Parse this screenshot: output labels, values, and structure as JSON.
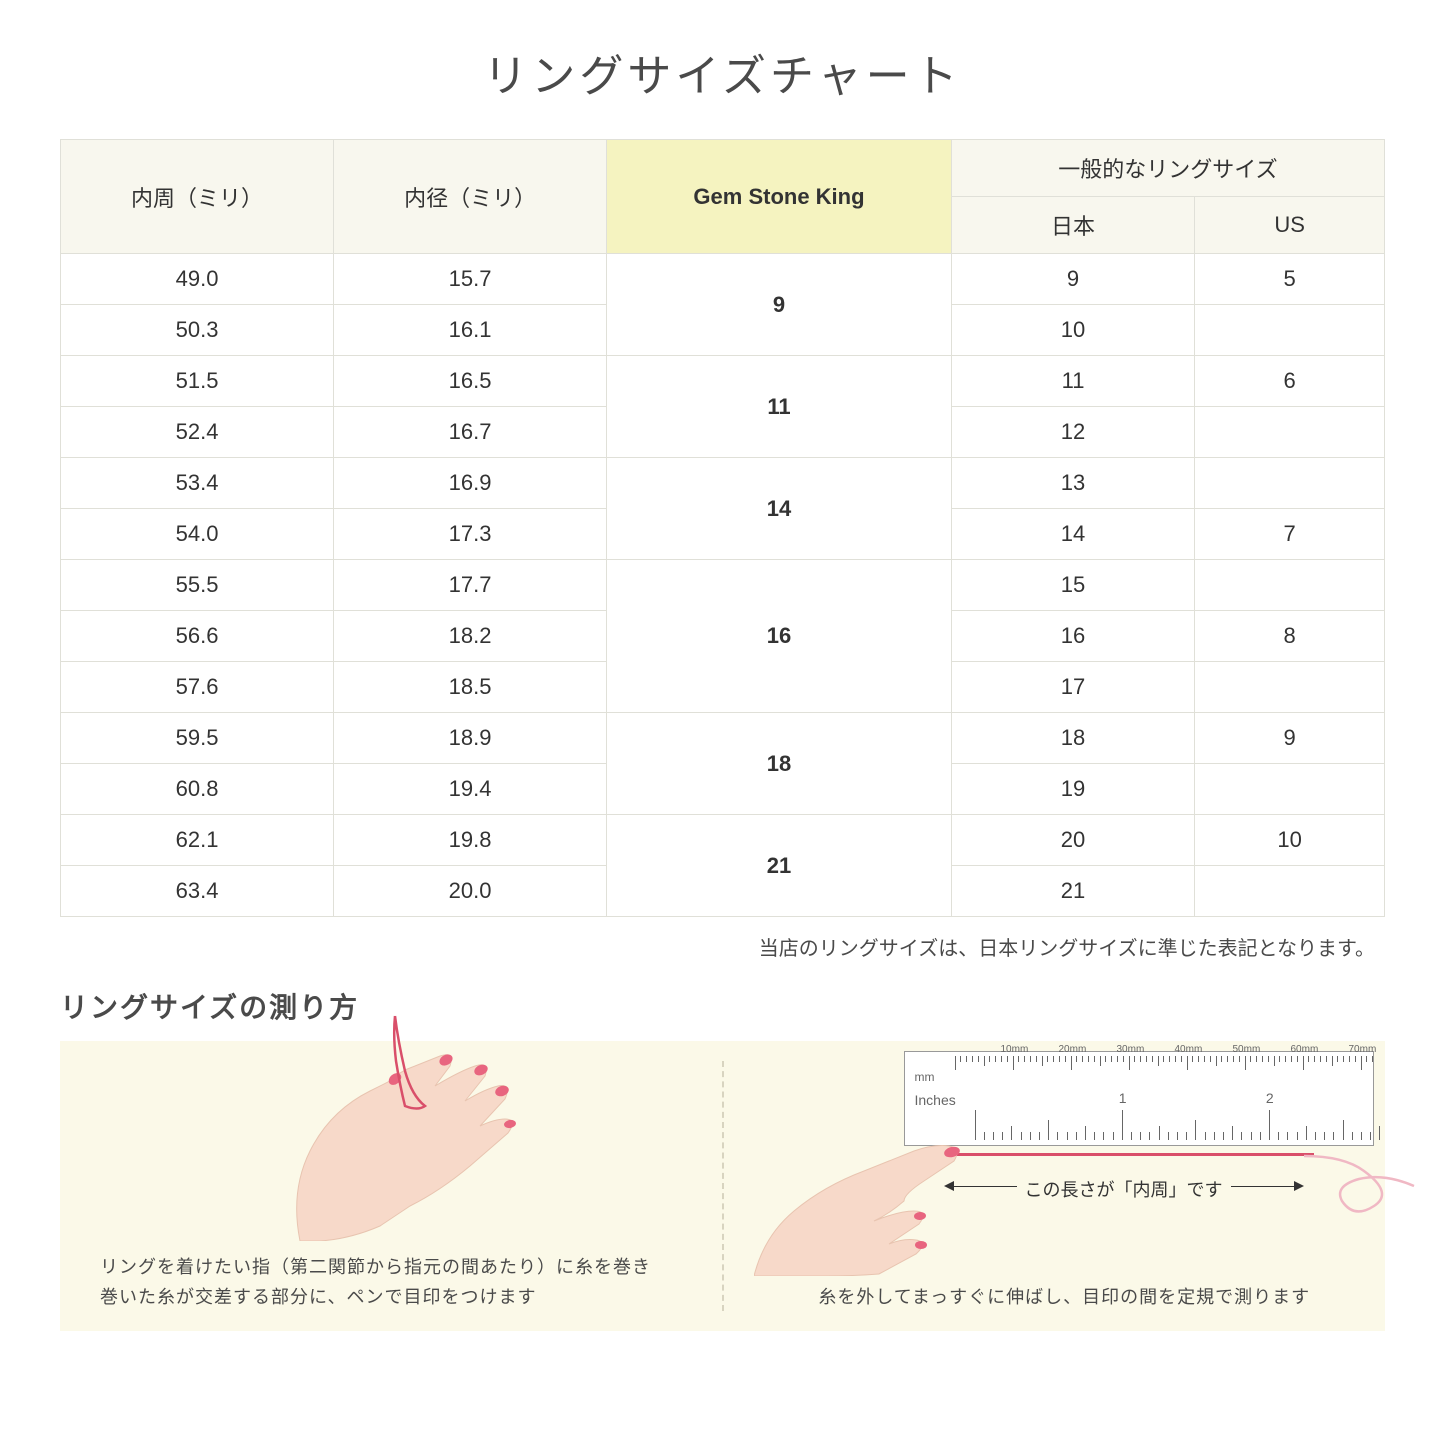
{
  "title": "リングサイズチャート",
  "table": {
    "headers": {
      "circumference": "内周（ミリ）",
      "diameter": "内径（ミリ）",
      "gsk": "Gem Stone King",
      "general_top": "一般的なリングサイズ",
      "japan": "日本",
      "us": "US"
    },
    "groups": [
      {
        "gsk": "9",
        "rows": [
          {
            "c": "49.0",
            "d": "15.7",
            "jp": "9",
            "us": "5"
          },
          {
            "c": "50.3",
            "d": "16.1",
            "jp": "10",
            "us": ""
          }
        ]
      },
      {
        "gsk": "11",
        "rows": [
          {
            "c": "51.5",
            "d": "16.5",
            "jp": "11",
            "us": "6"
          },
          {
            "c": "52.4",
            "d": "16.7",
            "jp": "12",
            "us": ""
          }
        ]
      },
      {
        "gsk": "14",
        "rows": [
          {
            "c": "53.4",
            "d": "16.9",
            "jp": "13",
            "us": ""
          },
          {
            "c": "54.0",
            "d": "17.3",
            "jp": "14",
            "us": "7"
          }
        ]
      },
      {
        "gsk": "16",
        "rows": [
          {
            "c": "55.5",
            "d": "17.7",
            "jp": "15",
            "us": ""
          },
          {
            "c": "56.6",
            "d": "18.2",
            "jp": "16",
            "us": "8"
          },
          {
            "c": "57.6",
            "d": "18.5",
            "jp": "17",
            "us": ""
          }
        ]
      },
      {
        "gsk": "18",
        "rows": [
          {
            "c": "59.5",
            "d": "18.9",
            "jp": "18",
            "us": "9"
          },
          {
            "c": "60.8",
            "d": "19.4",
            "jp": "19",
            "us": ""
          }
        ]
      },
      {
        "gsk": "21",
        "rows": [
          {
            "c": "62.1",
            "d": "19.8",
            "jp": "20",
            "us": "10"
          },
          {
            "c": "63.4",
            "d": "20.0",
            "jp": "21",
            "us": ""
          }
        ]
      }
    ]
  },
  "note": "当店のリングサイズは、日本リングサイズに準じた表記となります。",
  "subtitle": "リングサイズの測り方",
  "instructions": {
    "left": "リングを着けたい指（第二関節から指元の間あたり）に糸を巻き\n巻いた糸が交差する部分に、ペンで目印をつけます",
    "right": "糸を外してまっすぐに伸ばし、目印の間を定規で測ります",
    "arrow_label": "この長さが「内周」です"
  },
  "ruler": {
    "mm_unit": "mm",
    "mm_labels": [
      "10mm",
      "20mm",
      "30mm",
      "40mm",
      "50mm",
      "60mm",
      "70mm"
    ],
    "in_unit": "Inches",
    "in_labels": [
      "1",
      "2"
    ]
  },
  "colors": {
    "header_bg": "#f8f7ee",
    "gsk_bg": "#f5f3c0",
    "border": "#e0e0d8",
    "instruction_bg": "#fbf9e8",
    "skin": "#f7d9c9",
    "nail": "#e8657f",
    "thread": "#d94f6a"
  }
}
